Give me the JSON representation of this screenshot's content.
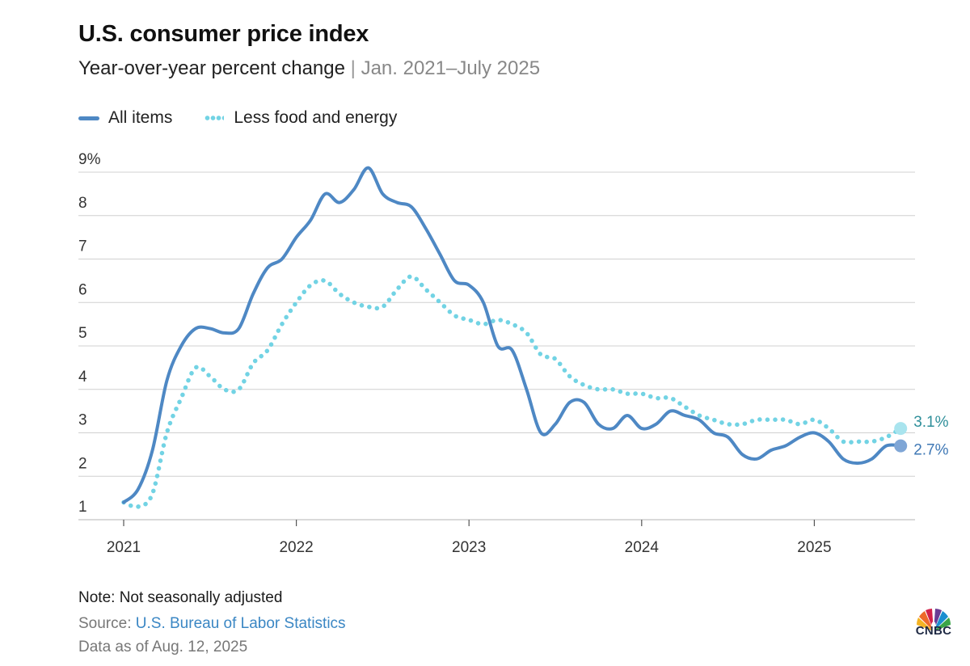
{
  "header": {
    "title": "U.S. consumer price index",
    "subtitle_main": "Year-over-year percent change",
    "subtitle_sep": "|",
    "subtitle_range": "Jan. 2021–July 2025"
  },
  "legend": {
    "all_items": "All items",
    "core": "Less food and energy"
  },
  "colors": {
    "all_items": "#4e88c4",
    "core": "#72d3e4",
    "all_items_label": "#3f78b5",
    "core_label": "#2f8f9a",
    "grid": "#d0d0d0"
  },
  "chart_data": {
    "type": "line",
    "title": "U.S. consumer price index",
    "subtitle": "Year-over-year percent change | Jan. 2021–July 2025",
    "x_start": "2021-01",
    "x_end": "2025-07",
    "x_tick_labels": [
      "2021",
      "2022",
      "2023",
      "2024",
      "2025"
    ],
    "y_tick_labels": [
      "1",
      "2",
      "3",
      "4",
      "5",
      "6",
      "7",
      "8",
      "9%"
    ],
    "ylim": [
      1,
      9
    ],
    "grid": true,
    "legend_position": "top-left",
    "series": [
      {
        "name": "All items",
        "style": "solid",
        "values": [
          1.4,
          1.7,
          2.6,
          4.2,
          5.0,
          5.4,
          5.4,
          5.3,
          5.4,
          6.2,
          6.8,
          7.0,
          7.5,
          7.9,
          8.5,
          8.3,
          8.6,
          9.1,
          8.5,
          8.3,
          8.2,
          7.7,
          7.1,
          6.5,
          6.4,
          6.0,
          5.0,
          4.9,
          4.0,
          3.0,
          3.2,
          3.7,
          3.7,
          3.2,
          3.1,
          3.4,
          3.1,
          3.2,
          3.5,
          3.4,
          3.3,
          3.0,
          2.9,
          2.5,
          2.4,
          2.6,
          2.7,
          2.9,
          3.0,
          2.8,
          2.4,
          2.3,
          2.4,
          2.7,
          2.7
        ],
        "end_label": "2.7%"
      },
      {
        "name": "Less food and energy",
        "style": "dotted",
        "values": [
          1.4,
          1.3,
          1.6,
          3.0,
          3.8,
          4.5,
          4.3,
          4.0,
          4.0,
          4.6,
          4.9,
          5.5,
          6.0,
          6.4,
          6.5,
          6.2,
          6.0,
          5.9,
          5.9,
          6.3,
          6.6,
          6.3,
          6.0,
          5.7,
          5.6,
          5.5,
          5.6,
          5.5,
          5.3,
          4.8,
          4.7,
          4.3,
          4.1,
          4.0,
          4.0,
          3.9,
          3.9,
          3.8,
          3.8,
          3.6,
          3.4,
          3.3,
          3.2,
          3.2,
          3.3,
          3.3,
          3.3,
          3.2,
          3.3,
          3.1,
          2.8,
          2.8,
          2.8,
          2.9,
          3.1
        ],
        "end_label": "3.1%"
      }
    ]
  },
  "footer": {
    "note": "Note: Not seasonally adjusted",
    "source_prefix": "Source: ",
    "source_link": "U.S. Bureau of Labor Statistics",
    "as_of": "Data as of Aug. 12, 2025",
    "logo_text": "CNBC"
  }
}
